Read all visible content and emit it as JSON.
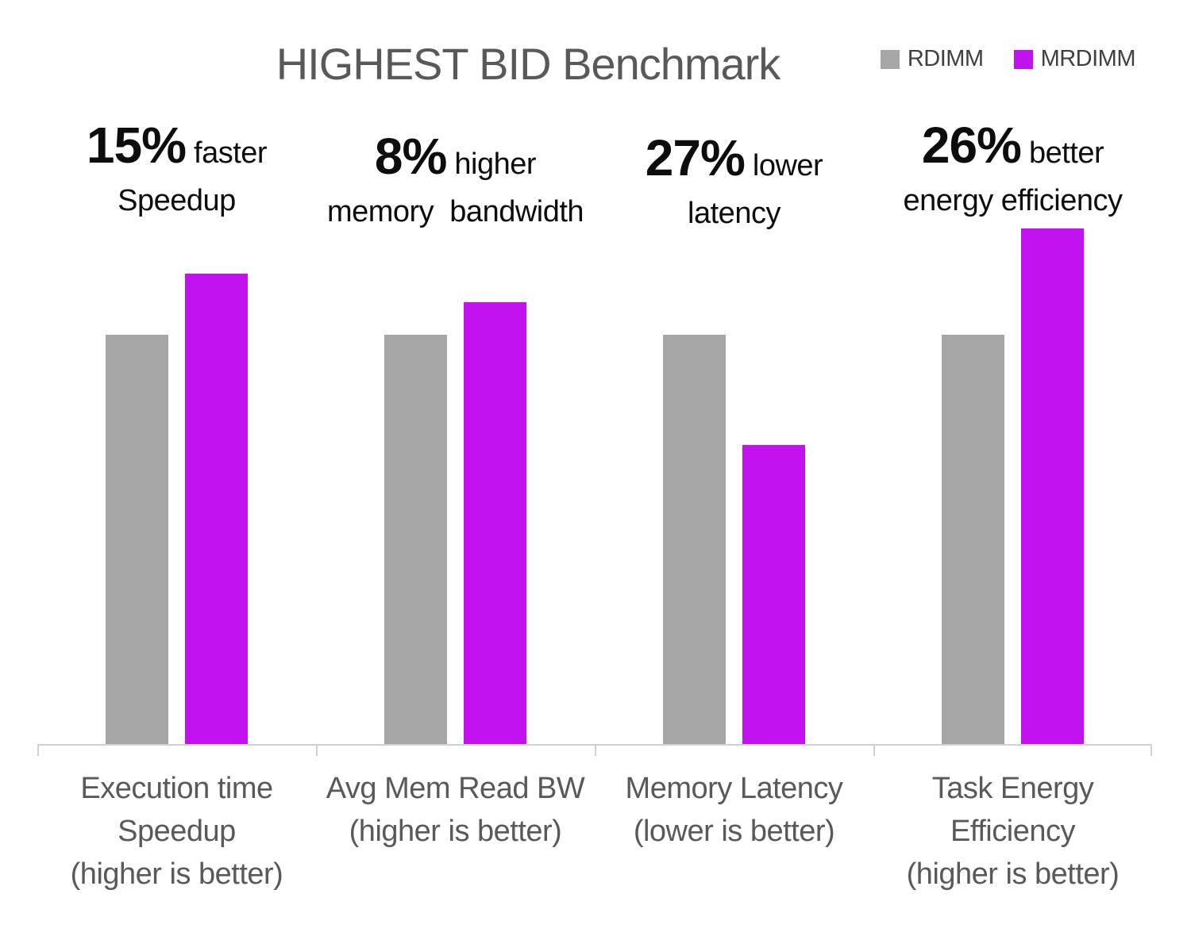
{
  "chart_data": {
    "type": "bar",
    "title": "HIGHEST BID Benchmark",
    "categories": [
      "Execution time\nSpeedup\n(higher is better)",
      "Avg Mem Read BW\n(higher is better)",
      "Memory Latency\n(lower is better)",
      "Task Energy\nEfficiency\n(higher is better)"
    ],
    "series": [
      {
        "name": "RDIMM",
        "color": "#a6a6a6",
        "values": [
          1.0,
          1.0,
          1.0,
          1.0
        ]
      },
      {
        "name": "MRDIMM",
        "color": "#c312f0",
        "values": [
          1.15,
          1.08,
          0.73,
          1.26
        ]
      }
    ],
    "annotations": [
      {
        "pct": "15%",
        "word": "faster",
        "line2": "Speedup"
      },
      {
        "pct": "8%",
        "word": "higher",
        "line2": "memory  bandwidth"
      },
      {
        "pct": "27%",
        "word": "lower",
        "line2": "latency"
      },
      {
        "pct": "26%",
        "word": "better",
        "line2": "energy efficiency"
      }
    ],
    "ylim": [
      0,
      1.35
    ],
    "grid": false,
    "legend_position": "top-right",
    "axis_color": "#d0d0d0",
    "title_color": "#595959",
    "label_color": "#595959",
    "annotation_color": "#0d0d0d"
  }
}
